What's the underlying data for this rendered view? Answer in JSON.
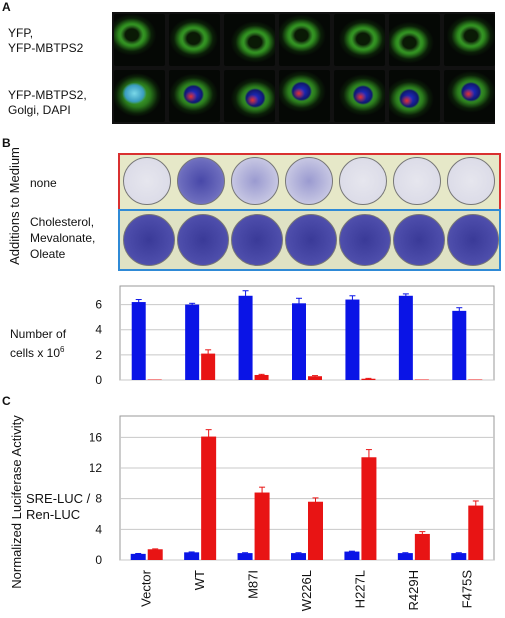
{
  "panelA": {
    "letter": "A",
    "row1_label_line1": "YFP,",
    "row1_label_line2": "YFP-MBTPS2",
    "row2_label_line1": "YFP-MBTPS2,",
    "row2_label_line2": "Golgi, DAPI"
  },
  "panelB": {
    "letter": "B",
    "rotated_label": "Additions to Medium",
    "row1_label": "none",
    "row2_label_line1": "Cholesterol,",
    "row2_label_line2": "Mevalonate,",
    "row2_label_line3": "Oleate",
    "ylabel_line1": "Number of",
    "ylabel_line2": "cells x 10",
    "ylabel_sup": "6",
    "frame_colors": {
      "top": "#d93030",
      "bottom": "#2f8ad6"
    }
  },
  "panelC": {
    "letter": "C",
    "rotated_label": "Normalized Luciferase Activity",
    "ylabel_line1": "SRE-LUC /",
    "ylabel_line2": "Ren-LUC"
  },
  "categories": [
    "Vector",
    "WT",
    "M87I",
    "W226L",
    "H227L",
    "R429H",
    "F475S"
  ],
  "colors": {
    "blue": "#0a14e6",
    "red": "#e81414",
    "grid": "#c8c8c8"
  },
  "chart_data": [
    {
      "type": "bar",
      "categories": [
        "",
        "WT",
        "M87I",
        "W226L",
        "H227L",
        "R429H",
        "F475S"
      ],
      "series": [
        {
          "values": [
            6.2,
            6.0,
            6.7,
            6.1,
            6.4,
            6.7,
            5.5
          ],
          "errors": [
            0.2,
            0.1,
            0.4,
            0.4,
            0.3,
            0.15,
            0.25
          ]
        },
        {
          "values": [
            0,
            2.1,
            0.4,
            0.3,
            0.1,
            0,
            0
          ],
          "errors": [
            0,
            0.3,
            0.05,
            0.05,
            0.03,
            0,
            0
          ]
        }
      ],
      "yticks": [
        "0",
        "2",
        "4",
        "6"
      ],
      "ylim": [
        0,
        7
      ],
      "grid": true
    },
    {
      "type": "bar",
      "categories": [
        "Vector",
        "WT",
        "M87I",
        "W226L",
        "H227L",
        "R429H",
        "F475S"
      ],
      "series": [
        {
          "values": [
            0.8,
            1.0,
            0.9,
            0.9,
            1.1,
            0.9,
            0.9
          ],
          "errors": [
            0.05,
            0.05,
            0.05,
            0.05,
            0.05,
            0.05,
            0.05
          ]
        },
        {
          "values": [
            1.4,
            16.1,
            8.8,
            7.6,
            13.4,
            3.4,
            7.1
          ],
          "errors": [
            0.05,
            0.9,
            0.7,
            0.5,
            1.0,
            0.3,
            0.6
          ]
        }
      ],
      "yticks": [
        "0",
        "4",
        "8",
        "12",
        "16"
      ],
      "ylim": [
        0,
        18
      ],
      "grid": true
    }
  ]
}
